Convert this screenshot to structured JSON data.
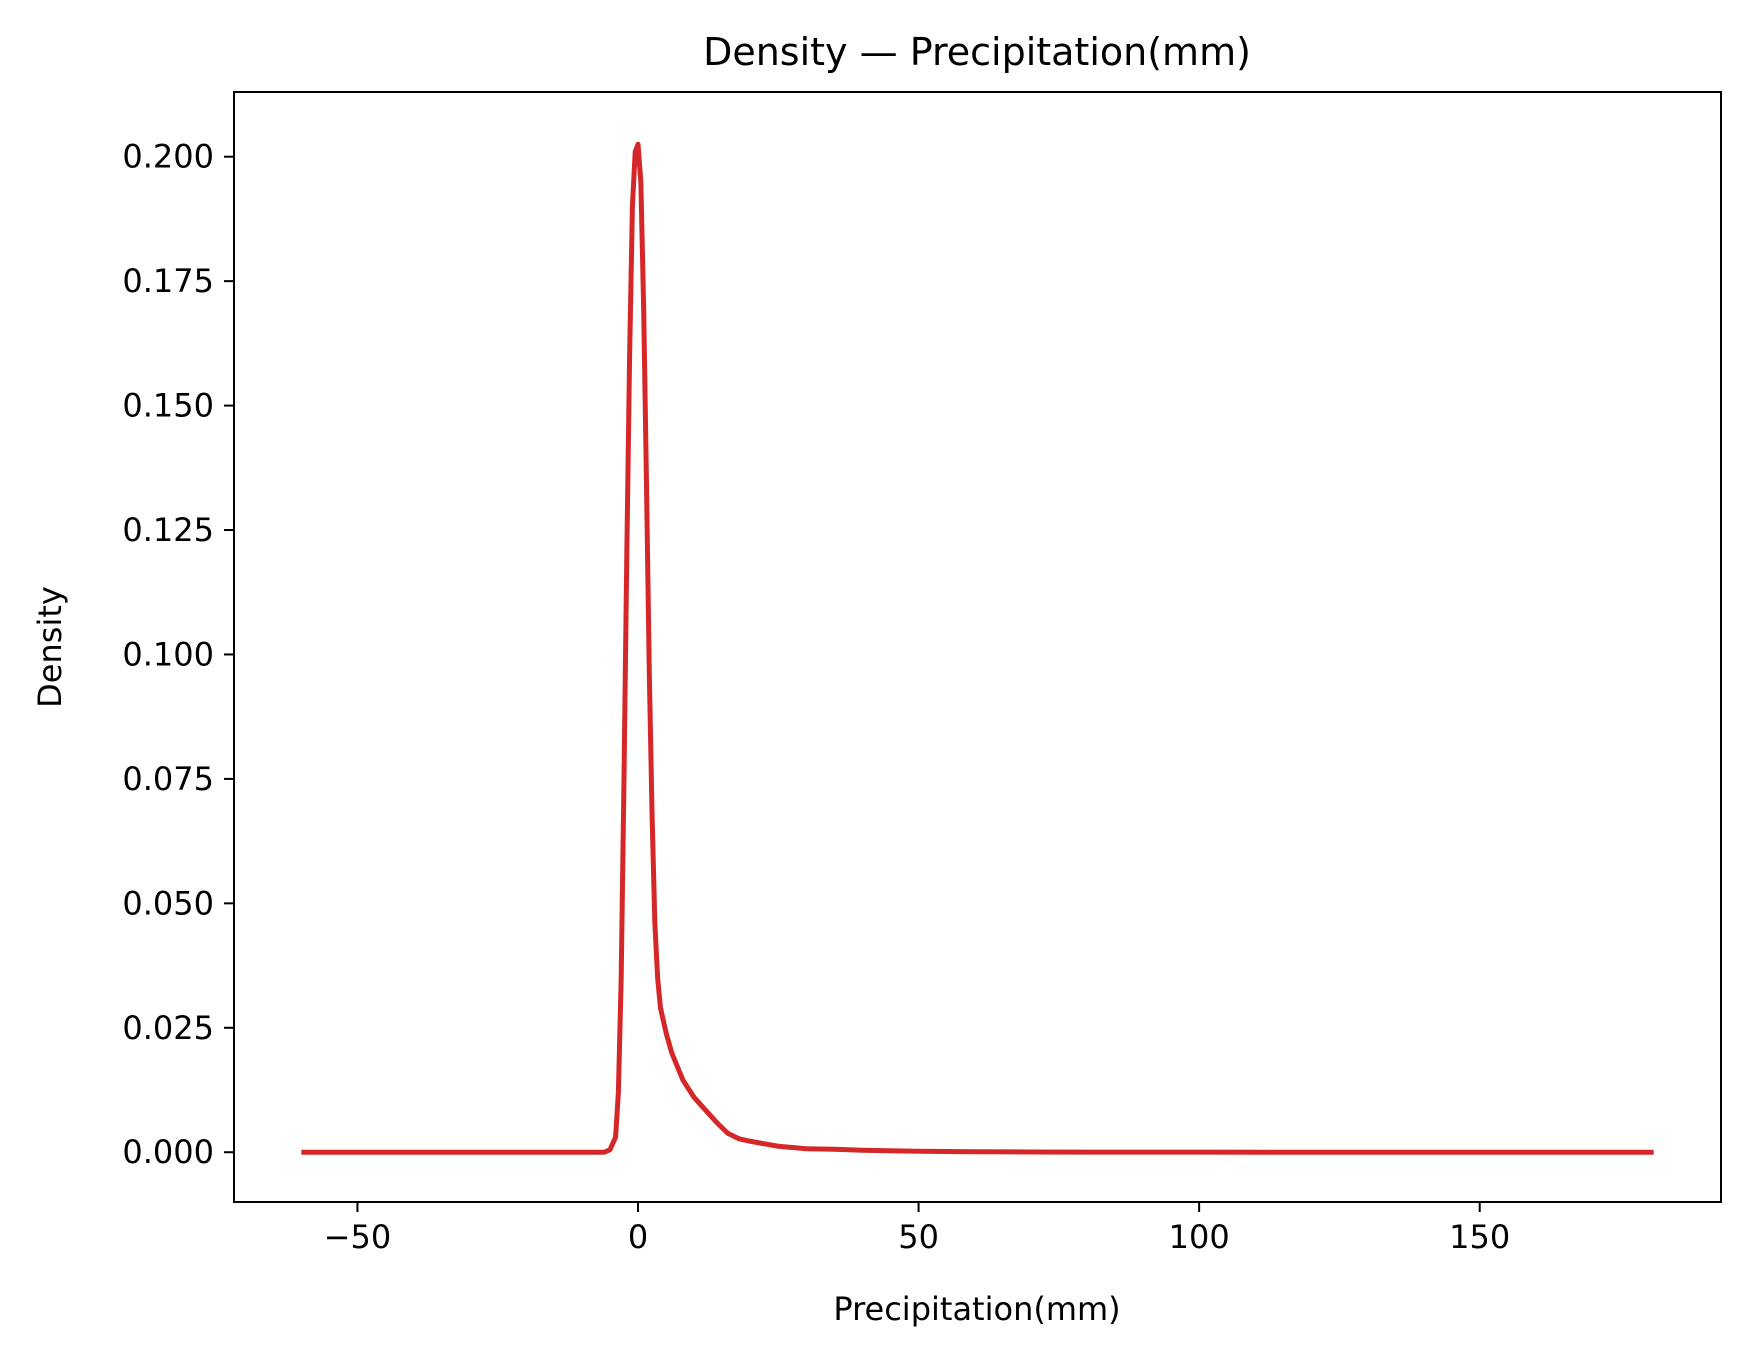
{
  "chart_data": {
    "type": "line",
    "title": "Density — Precipitation(mm)",
    "xlabel": "Precipitation(mm)",
    "ylabel": "Density",
    "xlim": [
      -72,
      193
    ],
    "ylim": [
      -0.01,
      0.213
    ],
    "xticks": [
      -50,
      0,
      50,
      100,
      150
    ],
    "xtick_labels": [
      "−50",
      "0",
      "50",
      "100",
      "150"
    ],
    "yticks": [
      0.0,
      0.025,
      0.05,
      0.075,
      0.1,
      0.125,
      0.15,
      0.175,
      0.2
    ],
    "ytick_labels": [
      "0.000",
      "0.025",
      "0.050",
      "0.075",
      "0.100",
      "0.125",
      "0.150",
      "0.175",
      "0.200"
    ],
    "grid": false,
    "legend": "none",
    "series": [
      {
        "color": "#d62728",
        "x": [
          -60,
          -10,
          -6,
          -5,
          -4,
          -3.5,
          -3,
          -2.5,
          -2,
          -1.5,
          -1,
          -0.5,
          0,
          0.5,
          1,
          1.5,
          2,
          2.5,
          3,
          3.5,
          4,
          5,
          6,
          8,
          10,
          12,
          14,
          16,
          18,
          20,
          25,
          30,
          35,
          40,
          50,
          60,
          70,
          80,
          90,
          100,
          120,
          150,
          181
        ],
        "y": [
          0,
          0,
          0,
          0.0005,
          0.003,
          0.012,
          0.035,
          0.075,
          0.12,
          0.16,
          0.19,
          0.201,
          0.2025,
          0.195,
          0.17,
          0.135,
          0.097,
          0.068,
          0.046,
          0.035,
          0.029,
          0.024,
          0.02,
          0.0145,
          0.011,
          0.0085,
          0.006,
          0.0038,
          0.0027,
          0.0022,
          0.0012,
          0.0007,
          0.0006,
          0.0004,
          0.0002,
          0.0001,
          5e-05,
          3e-05,
          2e-05,
          1e-05,
          0,
          0,
          0
        ]
      }
    ]
  }
}
